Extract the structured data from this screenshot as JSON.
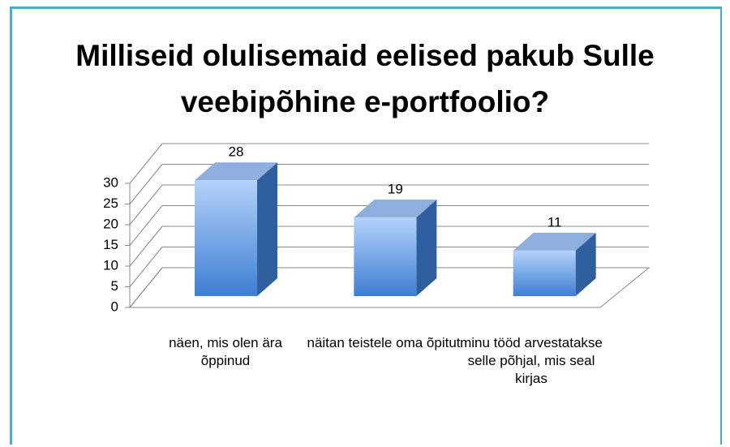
{
  "chart_data": {
    "type": "bar3d",
    "title": "Milliseid olulisemaid eelised pakub Sulle veebipõhine e-portfoolio?",
    "categories": [
      "näen, mis olen ära õppinud",
      "näitan teistele oma õpitut",
      "minu tööd arvestatakse selle põhjal, mis seal kirjas"
    ],
    "values": [
      28,
      19,
      11
    ],
    "color": "#4f8fdc",
    "ylim": [
      0,
      30
    ],
    "yticks": [
      0,
      5,
      10,
      15,
      20,
      25,
      30
    ],
    "grid": true
  }
}
